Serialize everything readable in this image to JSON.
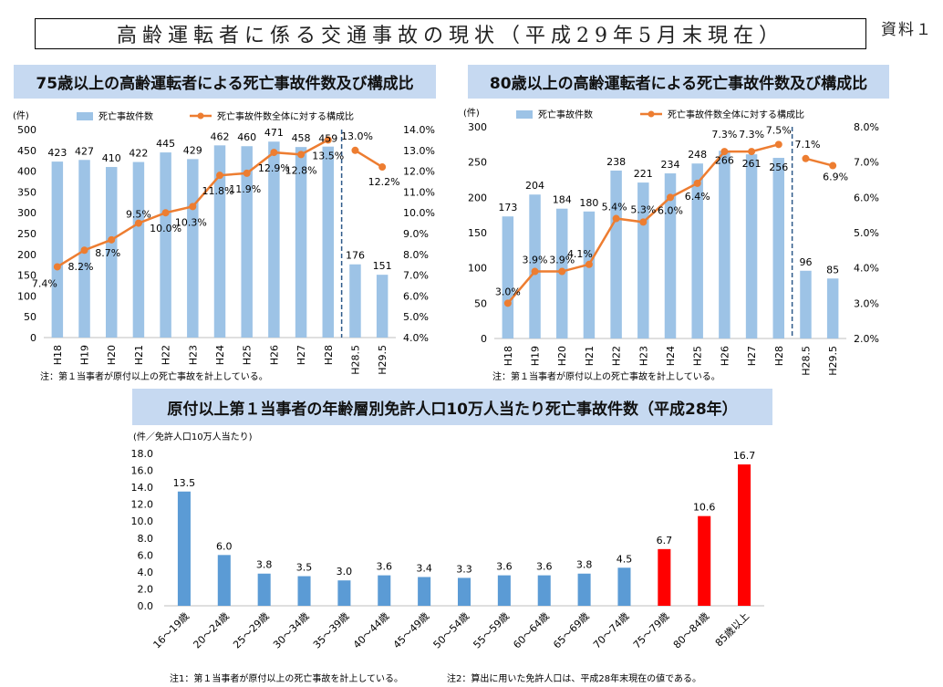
{
  "header": {
    "title": "高齢運転者に係る交通事故の現状（平成29年5月末現在）",
    "doc_label": "資料１"
  },
  "colors": {
    "bar": "#9dc3e6",
    "line": "#ed7d31",
    "bar3_blue": "#5b9bd5",
    "bar3_red": "#ff0000",
    "banner": "#c6d9f1"
  },
  "chart_data": [
    {
      "type": "bar",
      "title": "75歳以上の高齢運転者による死亡事故件数及び構成比",
      "categories": [
        "H18",
        "H19",
        "H20",
        "H21",
        "H22",
        "H23",
        "H24",
        "H25",
        "H26",
        "H27",
        "H28",
        "H28.5",
        "H29.5"
      ],
      "ylabel": "(件)",
      "ylim": [
        0,
        500
      ],
      "y_ticks": [
        "0",
        "50",
        "100",
        "150",
        "200",
        "250",
        "300",
        "350",
        "400",
        "450",
        "500"
      ],
      "y2lim": [
        4.0,
        14.0
      ],
      "y2_ticks": [
        "4.0%",
        "5.0%",
        "6.0%",
        "7.0%",
        "8.0%",
        "9.0%",
        "10.0%",
        "11.0%",
        "12.0%",
        "13.0%",
        "14.0%"
      ],
      "legend": [
        "死亡事故件数",
        "死亡事故件数全体に対する構成比"
      ],
      "series": [
        {
          "name": "死亡事故件数",
          "type": "bar",
          "values": [
            423,
            427,
            410,
            422,
            445,
            429,
            462,
            460,
            471,
            458,
            459,
            176,
            151
          ],
          "labels": [
            "423",
            "427",
            "410",
            "422",
            "445",
            "429",
            "462",
            "460",
            "471",
            "458",
            "459",
            "176",
            "151"
          ]
        },
        {
          "name": "死亡事故件数全体に対する構成比",
          "type": "line",
          "axis": "y2",
          "segments": [
            [
              0,
              10
            ],
            [
              11,
              12
            ]
          ],
          "values": [
            7.4,
            8.2,
            8.7,
            9.5,
            10.0,
            10.3,
            11.8,
            11.9,
            12.9,
            12.8,
            13.5,
            13.0,
            12.2
          ],
          "labels": [
            "7.4%",
            "8.2%",
            "8.7%",
            "9.5%",
            "10.0%",
            "10.3%",
            "11.8%",
            "11.9%",
            "12.9%",
            "12.8%",
            "13.5%",
            "13.0%",
            "12.2%"
          ]
        }
      ],
      "note": "注：第１当事者が原付以上の死亡事故を計上している。"
    },
    {
      "type": "bar",
      "title": "80歳以上の高齢運転者による死亡事故件数及び構成比",
      "categories": [
        "H18",
        "H19",
        "H20",
        "H21",
        "H22",
        "H23",
        "H24",
        "H25",
        "H26",
        "H27",
        "H28",
        "H28.5",
        "H29.5"
      ],
      "ylabel": "(件)",
      "ylim": [
        0,
        300
      ],
      "y_ticks": [
        "0",
        "50",
        "100",
        "150",
        "200",
        "250",
        "300"
      ],
      "y2lim": [
        2.0,
        8.0
      ],
      "y2_ticks": [
        "2.0%",
        "3.0%",
        "4.0%",
        "5.0%",
        "6.0%",
        "7.0%",
        "8.0%"
      ],
      "legend": [
        "死亡事故件数",
        "死亡事故件数全体に対する構成比"
      ],
      "series": [
        {
          "name": "死亡事故件数",
          "type": "bar",
          "values": [
            173,
            204,
            184,
            180,
            238,
            221,
            234,
            248,
            266,
            261,
            256,
            96,
            85
          ],
          "labels": [
            "173",
            "204",
            "184",
            "180",
            "238",
            "221",
            "234",
            "248",
            "266",
            "261",
            "256",
            "96",
            "85"
          ]
        },
        {
          "name": "死亡事故件数全体に対する構成比",
          "type": "line",
          "axis": "y2",
          "segments": [
            [
              0,
              10
            ],
            [
              11,
              12
            ]
          ],
          "values": [
            3.0,
            3.9,
            3.9,
            4.1,
            5.4,
            5.3,
            6.0,
            6.4,
            7.3,
            7.3,
            7.5,
            7.1,
            6.9
          ],
          "labels": [
            "3.0%",
            "3.9%",
            "3.9%",
            "4.1%",
            "5.4%",
            "5.3%",
            "6.0%",
            "6.4%",
            "7.3%",
            "7.3%",
            "7.5%",
            "7.1%",
            "6.9%"
          ]
        }
      ],
      "note": "注：第１当事者が原付以上の死亡事故を計上している。"
    },
    {
      "type": "bar",
      "title": "原付以上第１当事者の年齢層別免許人口10万人当たり死亡事故件数（平成28年）",
      "categories": [
        "16～19歳",
        "20～24歳",
        "25～29歳",
        "30～34歳",
        "35～39歳",
        "40～44歳",
        "45～49歳",
        "50～54歳",
        "55～59歳",
        "60～64歳",
        "65～69歳",
        "70～74歳",
        "75～79歳",
        "80～84歳",
        "85歳以上"
      ],
      "ylabel": "(件／免許人口10万人当たり)",
      "ylim": [
        0,
        18
      ],
      "y_ticks": [
        "0.0",
        "2.0",
        "4.0",
        "6.0",
        "8.0",
        "10.0",
        "12.0",
        "14.0",
        "16.0",
        "18.0"
      ],
      "values": [
        13.5,
        6.0,
        3.8,
        3.5,
        3.0,
        3.6,
        3.4,
        3.3,
        3.6,
        3.6,
        3.8,
        4.5,
        6.7,
        10.6,
        16.7
      ],
      "labels": [
        "13.5",
        "6.0",
        "3.8",
        "3.5",
        "3.0",
        "3.6",
        "3.4",
        "3.3",
        "3.6",
        "3.6",
        "3.8",
        "4.5",
        "6.7",
        "10.6",
        "16.7"
      ],
      "highlight_from_index": 12,
      "notes": [
        "注1：第１当事者が原付以上の死亡事故を計上している。",
        "注2：算出に用いた免許人口は、平成28年末現在の値である。"
      ]
    }
  ]
}
